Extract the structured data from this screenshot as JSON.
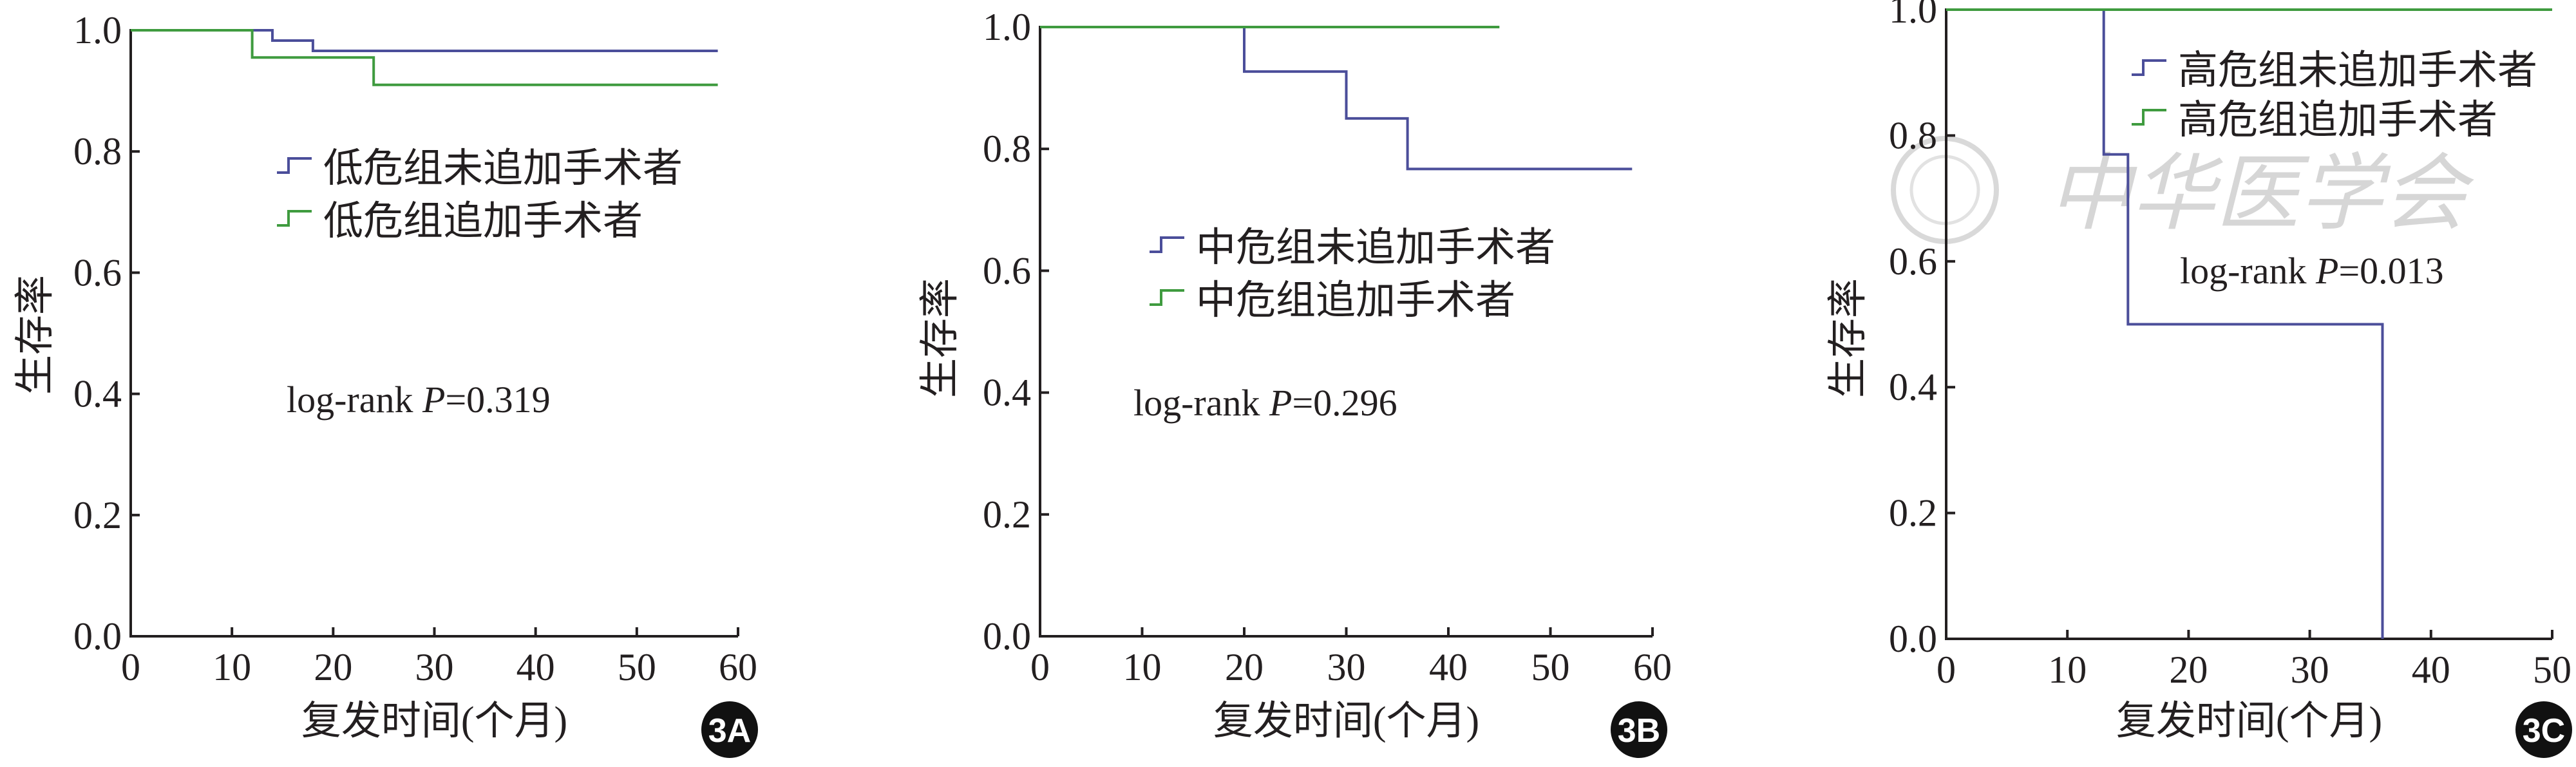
{
  "colors": {
    "untreated": "#4b4e9a",
    "treated": "#3f9b3f",
    "axis": "#231f20"
  },
  "watermark": {
    "text": "中华医学会"
  },
  "chart_data": [
    {
      "type": "line",
      "panel_label": "3A",
      "ylabel": "生存率",
      "xlabel": "复发时间(个月)",
      "xlim": [
        0,
        60
      ],
      "ylim": [
        0,
        1.0
      ],
      "xticks": [
        "0",
        "10",
        "20",
        "30",
        "40",
        "50",
        "60"
      ],
      "yticks": [
        "0.0",
        "0.2",
        "0.4",
        "0.6",
        "0.8",
        "1.0"
      ],
      "legend_placement": "upper-middle",
      "annotation": "log-rank P=0.319",
      "series": [
        {
          "name": "低危组未追加手术者",
          "color_key": "untreated",
          "x": [
            0,
            14,
            14,
            18,
            18,
            58
          ],
          "y": [
            1.0,
            1.0,
            0.983,
            0.983,
            0.966,
            0.966
          ]
        },
        {
          "name": "低危组追加手术者",
          "color_key": "treated",
          "x": [
            0,
            12,
            12,
            24,
            24,
            58
          ],
          "y": [
            1.0,
            1.0,
            0.955,
            0.955,
            0.91,
            0.91
          ]
        }
      ]
    },
    {
      "type": "line",
      "panel_label": "3B",
      "ylabel": "生存率",
      "xlabel": "复发时间(个月)",
      "xlim": [
        0,
        60
      ],
      "ylim": [
        0,
        1.0
      ],
      "xticks": [
        "0",
        "10",
        "20",
        "30",
        "40",
        "50",
        "60"
      ],
      "yticks": [
        "0.0",
        "0.2",
        "0.4",
        "0.6",
        "0.8",
        "1.0"
      ],
      "legend_placement": "center",
      "annotation": "log-rank P=0.296",
      "series": [
        {
          "name": "中危组未追加手术者",
          "color_key": "untreated",
          "x": [
            0,
            20,
            20,
            30,
            30,
            36,
            36,
            58
          ],
          "y": [
            1.0,
            1.0,
            0.927,
            0.927,
            0.85,
            0.85,
            0.767,
            0.767
          ]
        },
        {
          "name": "中危组追加手术者",
          "color_key": "treated",
          "x": [
            0,
            45
          ],
          "y": [
            1.0,
            1.0
          ]
        }
      ]
    },
    {
      "type": "line",
      "panel_label": "3C",
      "ylabel": "生存率",
      "xlabel": "复发时间(个月)",
      "xlim": [
        0,
        50
      ],
      "ylim": [
        0,
        1.0
      ],
      "xticks": [
        "0",
        "10",
        "20",
        "30",
        "40",
        "50"
      ],
      "yticks": [
        "0.0",
        "0.2",
        "0.4",
        "0.6",
        "0.8",
        "1.0"
      ],
      "legend_placement": "top-right",
      "annotation": "log-rank P=0.013",
      "series": [
        {
          "name": "高危组未追加手术者",
          "color_key": "untreated",
          "x": [
            0,
            13,
            13,
            15,
            15,
            36,
            36
          ],
          "y": [
            1.0,
            1.0,
            0.77,
            0.77,
            0.5,
            0.5,
            0.0
          ]
        },
        {
          "name": "高危组追加手术者",
          "color_key": "treated",
          "x": [
            0,
            50
          ],
          "y": [
            1.0,
            1.0
          ]
        }
      ]
    }
  ]
}
